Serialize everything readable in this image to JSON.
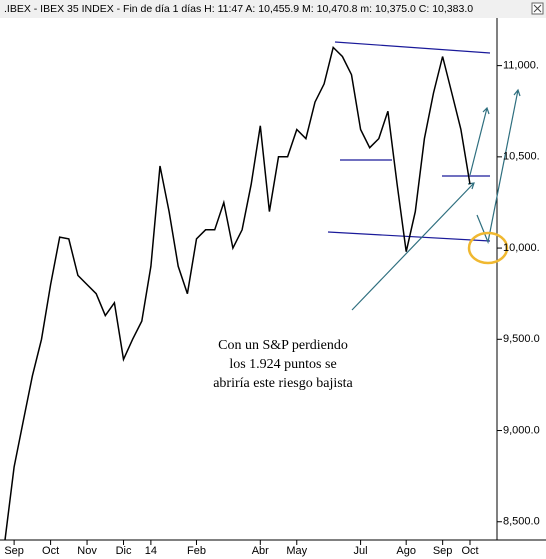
{
  "chart_data": {
    "type": "line",
    "title": ".IBEX - IBEX 35 INDEX - Fin de día 1 días  H: 11:47  A: 10,455.9  M: 10,470.8  m: 10,375.0  C: 10,383.0",
    "categories": [
      null,
      "Sep",
      null,
      null,
      null,
      "Oct",
      null,
      null,
      null,
      "Nov",
      null,
      null,
      null,
      "Dic",
      null,
      null,
      "14",
      null,
      null,
      null,
      null,
      "Feb",
      null,
      null,
      null,
      null,
      null,
      null,
      "Abr",
      null,
      null,
      null,
      "May",
      null,
      null,
      null,
      null,
      null,
      null,
      "Jul",
      null,
      null,
      null,
      null,
      "Ago",
      null,
      null,
      null,
      "Sep",
      null,
      null,
      "Oct"
    ],
    "series": [
      {
        "name": "IBEX 35",
        "color": "#000000",
        "values": [
          8400,
          8800,
          9050,
          9300,
          9500,
          9800,
          10060,
          10050,
          9850,
          9800,
          9750,
          9630,
          9700,
          9390,
          9500,
          9600,
          9900,
          10450,
          10200,
          9900,
          9750,
          10050,
          10100,
          10100,
          10250,
          10000,
          10100,
          10350,
          10670,
          10200,
          10500,
          10500,
          10650,
          10600,
          10800,
          10900,
          11100,
          11050,
          10950,
          10650,
          10550,
          10600,
          10750,
          10350,
          9980,
          10200,
          10600,
          10850,
          11050,
          10850,
          10650,
          10350
        ]
      }
    ],
    "ylim": [
      8400,
      11250
    ],
    "yticks": [
      {
        "value": 8500,
        "label": "8,500.0"
      },
      {
        "value": 9000,
        "label": "9,000.0"
      },
      {
        "value": 9500,
        "label": "9,500.0"
      },
      {
        "value": 10000,
        "label": "10,000."
      },
      {
        "value": 10500,
        "label": "10,500."
      },
      {
        "value": 11000,
        "label": "11,000."
      }
    ],
    "annotations": [
      "Con un S&P perdiendo",
      "los 1.924 puntos se",
      "abriría este riesgo bajista"
    ]
  }
}
